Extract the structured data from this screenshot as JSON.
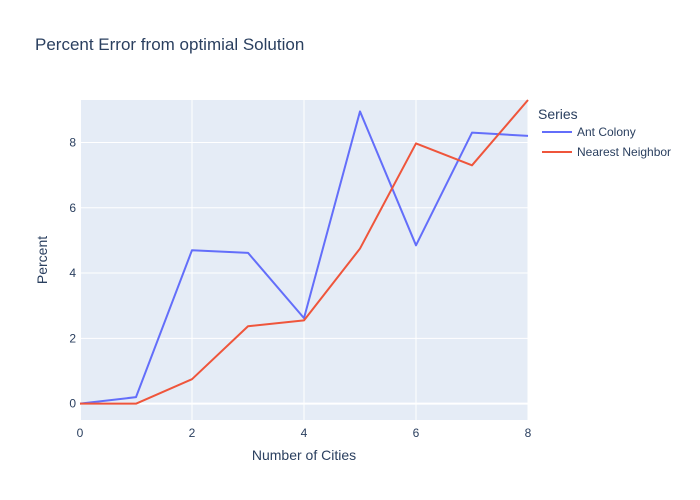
{
  "chart_data": {
    "type": "line",
    "title": "Percent Error from optimial Solution",
    "xlabel": "Number of Cities",
    "ylabel": "Percent",
    "x": [
      0,
      1,
      2,
      3,
      4,
      5,
      6,
      7,
      8
    ],
    "xlim": [
      0,
      8
    ],
    "ylim": [
      -0.5,
      9.3
    ],
    "xticks": [
      0,
      2,
      4,
      6,
      8
    ],
    "yticks": [
      0,
      2,
      4,
      6,
      8
    ],
    "grid": true,
    "legend": {
      "title": "Series",
      "position": "right"
    },
    "plot_background": "#e5ecf6",
    "series": [
      {
        "name": "Ant Colony",
        "color": "#636efa",
        "values": [
          0,
          0.2,
          4.7,
          4.62,
          2.62,
          8.95,
          4.85,
          8.3,
          8.2
        ]
      },
      {
        "name": "Nearest Neighbor",
        "color": "#ef553b",
        "values": [
          0,
          0,
          0.75,
          2.37,
          2.55,
          4.75,
          7.97,
          7.3,
          9.3
        ]
      }
    ]
  }
}
